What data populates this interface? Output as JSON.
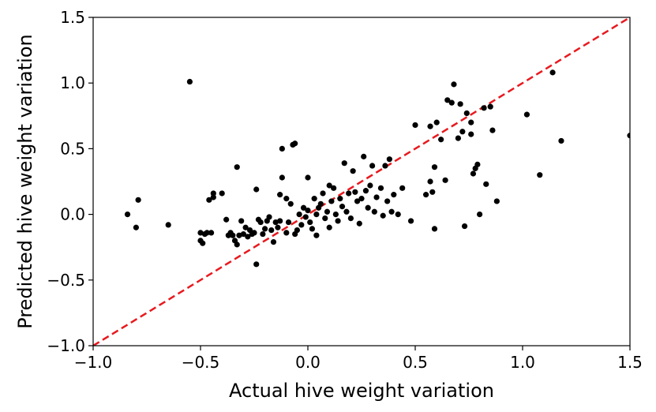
{
  "chart_data": {
    "type": "scatter",
    "xlabel": "Actual hive weight variation",
    "ylabel": "Predicted hive weight variation",
    "xlim": [
      -1.0,
      1.5
    ],
    "ylim": [
      -1.0,
      1.5
    ],
    "xticks": [
      "−1.0",
      "−0.5",
      "0.0",
      "0.5",
      "1.0",
      "1.5"
    ],
    "yticks": [
      "−1.0",
      "−0.5",
      "0.0",
      "0.5",
      "1.0",
      "1.5"
    ],
    "grid": false,
    "point_color": "#000000",
    "reference_line": {
      "style": "dashed",
      "color": "#e8191e",
      "from": [
        -1.0,
        -1.0
      ],
      "to": [
        1.5,
        1.5
      ]
    },
    "points": [
      [
        -0.84,
        0.0
      ],
      [
        -0.79,
        0.11
      ],
      [
        -0.8,
        -0.1
      ],
      [
        -0.65,
        -0.08
      ],
      [
        -0.55,
        1.01
      ],
      [
        -0.5,
        -0.14
      ],
      [
        -0.5,
        -0.2
      ],
      [
        -0.49,
        -0.22
      ],
      [
        -0.48,
        -0.15
      ],
      [
        -0.47,
        -0.14
      ],
      [
        -0.45,
        -0.14
      ],
      [
        -0.46,
        0.11
      ],
      [
        -0.44,
        0.13
      ],
      [
        -0.44,
        0.16
      ],
      [
        -0.4,
        0.16
      ],
      [
        -0.38,
        -0.04
      ],
      [
        -0.37,
        -0.16
      ],
      [
        -0.36,
        -0.14
      ],
      [
        -0.35,
        -0.16
      ],
      [
        -0.34,
        -0.2
      ],
      [
        -0.33,
        -0.23
      ],
      [
        -0.32,
        -0.16
      ],
      [
        -0.33,
        0.36
      ],
      [
        -0.31,
        -0.05
      ],
      [
        -0.3,
        -0.15
      ],
      [
        -0.29,
        -0.1
      ],
      [
        -0.28,
        -0.17
      ],
      [
        -0.27,
        -0.12
      ],
      [
        -0.26,
        -0.15
      ],
      [
        -0.25,
        -0.14
      ],
      [
        -0.24,
        -0.38
      ],
      [
        -0.24,
        0.19
      ],
      [
        -0.23,
        -0.04
      ],
      [
        -0.22,
        -0.06
      ],
      [
        -0.21,
        -0.15
      ],
      [
        -0.2,
        -0.11
      ],
      [
        -0.19,
        -0.05
      ],
      [
        -0.18,
        -0.02
      ],
      [
        -0.17,
        -0.12
      ],
      [
        -0.16,
        -0.21
      ],
      [
        -0.15,
        -0.06
      ],
      [
        -0.14,
        -0.1
      ],
      [
        -0.13,
        0.15
      ],
      [
        -0.13,
        -0.05
      ],
      [
        -0.12,
        0.28
      ],
      [
        -0.12,
        0.5
      ],
      [
        -0.1,
        0.12
      ],
      [
        -0.1,
        -0.14
      ],
      [
        -0.09,
        -0.06
      ],
      [
        -0.08,
        0.08
      ],
      [
        -0.07,
        0.53
      ],
      [
        -0.06,
        0.54
      ],
      [
        -0.06,
        -0.15
      ],
      [
        -0.05,
        -0.12
      ],
      [
        -0.04,
        0.0
      ],
      [
        -0.03,
        -0.08
      ],
      [
        -0.02,
        0.05
      ],
      [
        -0.01,
        -0.02
      ],
      [
        0.0,
        0.28
      ],
      [
        0.0,
        0.03
      ],
      [
        0.01,
        -0.06
      ],
      [
        0.02,
        -0.11
      ],
      [
        0.03,
        0.12
      ],
      [
        0.04,
        0.0
      ],
      [
        0.04,
        -0.16
      ],
      [
        0.05,
        0.05
      ],
      [
        0.06,
        0.08
      ],
      [
        0.07,
        0.16
      ],
      [
        0.08,
        -0.03
      ],
      [
        0.09,
        0.02
      ],
      [
        0.1,
        0.22
      ],
      [
        0.1,
        -0.1
      ],
      [
        0.11,
        0.1
      ],
      [
        0.12,
        0.2
      ],
      [
        0.13,
        0.0
      ],
      [
        0.14,
        -0.05
      ],
      [
        0.15,
        0.12
      ],
      [
        0.16,
        0.06
      ],
      [
        0.17,
        0.39
      ],
      [
        0.18,
        0.02
      ],
      [
        0.19,
        0.16
      ],
      [
        0.2,
        -0.03
      ],
      [
        0.21,
        0.33
      ],
      [
        0.22,
        0.17
      ],
      [
        0.23,
        0.1
      ],
      [
        0.24,
        -0.07
      ],
      [
        0.25,
        0.12
      ],
      [
        0.26,
        0.44
      ],
      [
        0.27,
        0.18
      ],
      [
        0.28,
        0.05
      ],
      [
        0.29,
        0.22
      ],
      [
        0.3,
        0.37
      ],
      [
        0.31,
        0.02
      ],
      [
        0.32,
        0.13
      ],
      [
        0.34,
        0.2
      ],
      [
        0.35,
        -0.01
      ],
      [
        0.36,
        0.37
      ],
      [
        0.37,
        0.1
      ],
      [
        0.38,
        0.42
      ],
      [
        0.39,
        0.02
      ],
      [
        0.4,
        0.15
      ],
      [
        0.42,
        0.0
      ],
      [
        0.44,
        0.2
      ],
      [
        0.48,
        -0.05
      ],
      [
        0.5,
        0.68
      ],
      [
        0.55,
        0.15
      ],
      [
        0.57,
        0.25
      ],
      [
        0.57,
        0.67
      ],
      [
        0.58,
        0.17
      ],
      [
        0.59,
        0.36
      ],
      [
        0.59,
        -0.11
      ],
      [
        0.6,
        0.7
      ],
      [
        0.62,
        0.57
      ],
      [
        0.64,
        0.26
      ],
      [
        0.65,
        0.87
      ],
      [
        0.67,
        0.85
      ],
      [
        0.68,
        0.99
      ],
      [
        0.7,
        0.58
      ],
      [
        0.71,
        0.84
      ],
      [
        0.72,
        0.63
      ],
      [
        0.73,
        -0.09
      ],
      [
        0.74,
        0.77
      ],
      [
        0.76,
        0.61
      ],
      [
        0.76,
        0.7
      ],
      [
        0.77,
        0.31
      ],
      [
        0.78,
        0.35
      ],
      [
        0.79,
        0.38
      ],
      [
        0.8,
        0.0
      ],
      [
        0.82,
        0.81
      ],
      [
        0.83,
        0.23
      ],
      [
        0.85,
        0.82
      ],
      [
        0.86,
        0.64
      ],
      [
        0.88,
        0.1
      ],
      [
        1.02,
        0.76
      ],
      [
        1.08,
        0.3
      ],
      [
        1.14,
        1.08
      ],
      [
        1.18,
        0.56
      ],
      [
        1.5,
        0.6
      ]
    ]
  }
}
